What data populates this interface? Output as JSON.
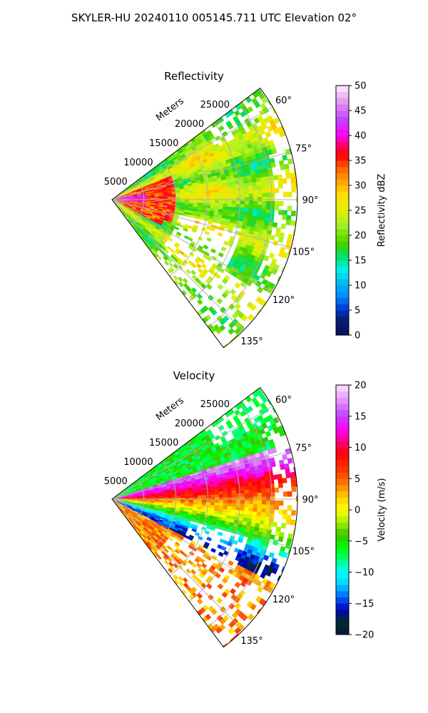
{
  "page": {
    "title": "SKYLER-HU  20240110  005145.711 UTC Elevation 02°"
  },
  "chart_data": [
    {
      "type": "heatmap",
      "projection": "polar-sector",
      "title": "Reflectivity",
      "radial_label": "Meters",
      "radial_ticks": [
        5000,
        10000,
        15000,
        20000,
        25000
      ],
      "radial_tick_labels": [
        "5000",
        "10000",
        "15000",
        "20000",
        "25000"
      ],
      "rlim": [
        0,
        29000
      ],
      "angle_ticks_deg": [
        60,
        75,
        90,
        105,
        120,
        135
      ],
      "angle_tick_labels": [
        "60°",
        "75°",
        "90°",
        "105°",
        "120°",
        "135°"
      ],
      "theta_range_deg": [
        53,
        143
      ],
      "grid": true,
      "colorbar": {
        "label": "Reflectivity dBZ",
        "range": [
          0,
          50
        ],
        "ticks": [
          0,
          5,
          10,
          15,
          20,
          25,
          30,
          35,
          40,
          45,
          50
        ],
        "tick_labels": [
          "0",
          "5",
          "10",
          "15",
          "20",
          "25",
          "30",
          "35",
          "40",
          "45",
          "50"
        ],
        "stops": [
          [
            0,
            "#0b1060"
          ],
          [
            3,
            "#00206a"
          ],
          [
            5,
            "#0030d0"
          ],
          [
            8,
            "#0090ff"
          ],
          [
            10,
            "#00b0f0"
          ],
          [
            13,
            "#00f0f0"
          ],
          [
            16,
            "#00e060"
          ],
          [
            18,
            "#40d000"
          ],
          [
            20,
            "#70e000"
          ],
          [
            22,
            "#a0f030"
          ],
          [
            25,
            "#e0f000"
          ],
          [
            28,
            "#ffe000"
          ],
          [
            31,
            "#ffa000"
          ],
          [
            34,
            "#ff5000"
          ],
          [
            36,
            "#ff0000"
          ],
          [
            38,
            "#ff0060"
          ],
          [
            40,
            "#ff00ff"
          ],
          [
            43,
            "#c040ff"
          ],
          [
            46,
            "#e080f0"
          ],
          [
            50,
            "#fff0ff"
          ]
        ]
      },
      "description_bands": [
        {
          "theta_min": 55,
          "theta_max": 140,
          "r_min": 0,
          "r_max": 28000,
          "value": 25
        },
        {
          "theta_min": 72,
          "theta_max": 108,
          "r_min": 1500,
          "r_max": 9000,
          "value": 36
        },
        {
          "theta_min": 80,
          "theta_max": 95,
          "r_min": 800,
          "r_max": 5000,
          "value": 40
        }
      ]
    },
    {
      "type": "heatmap",
      "projection": "polar-sector",
      "title": "Velocity",
      "radial_label": "Meters",
      "radial_ticks": [
        5000,
        10000,
        15000,
        20000,
        25000
      ],
      "radial_tick_labels": [
        "5000",
        "10000",
        "15000",
        "20000",
        "25000"
      ],
      "rlim": [
        0,
        29000
      ],
      "angle_ticks_deg": [
        60,
        75,
        90,
        105,
        120,
        135
      ],
      "angle_tick_labels": [
        "60°",
        "75°",
        "90°",
        "105°",
        "120°",
        "135°"
      ],
      "theta_range_deg": [
        53,
        143
      ],
      "grid": true,
      "colorbar": {
        "label": "Velocity (m/s)",
        "range": [
          -20,
          20
        ],
        "ticks": [
          -20,
          -15,
          -10,
          -5,
          0,
          5,
          10,
          15,
          20
        ],
        "tick_labels": [
          "−20",
          "−15",
          "−10",
          "−5",
          "0",
          "5",
          "10",
          "15",
          "20"
        ],
        "stops": [
          [
            -20,
            "#0a1040"
          ],
          [
            -18,
            "#003020"
          ],
          [
            -16,
            "#0000c0"
          ],
          [
            -14,
            "#0060ff"
          ],
          [
            -12,
            "#00d0ff"
          ],
          [
            -10,
            "#00ffff"
          ],
          [
            -8,
            "#00ff80"
          ],
          [
            -6,
            "#00ff00"
          ],
          [
            -4,
            "#40c000"
          ],
          [
            -2,
            "#a0f000"
          ],
          [
            0,
            "#ffff00"
          ],
          [
            2,
            "#ffd000"
          ],
          [
            4,
            "#ff8000"
          ],
          [
            6,
            "#ff4000"
          ],
          [
            9,
            "#ff0000"
          ],
          [
            11,
            "#ff0080"
          ],
          [
            13,
            "#ff00ff"
          ],
          [
            15,
            "#c040ff"
          ],
          [
            17,
            "#e080ff"
          ],
          [
            20,
            "#ffe0ff"
          ]
        ]
      }
    }
  ]
}
